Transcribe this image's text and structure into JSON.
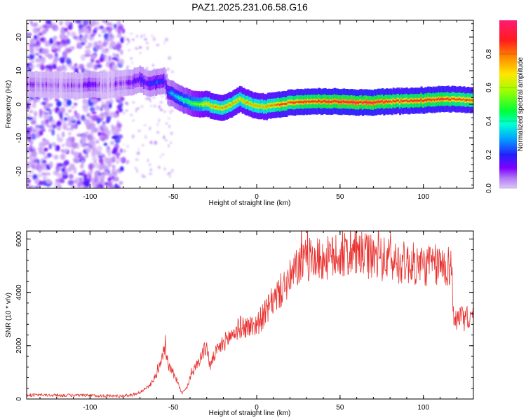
{
  "title": "PAZ1.2025.231.06.58.G16",
  "chart_data": [
    {
      "type": "heatmap",
      "xlabel": "Height of straight line (km)",
      "ylabel": "Frequency (Hz)",
      "xlim": [
        -138,
        130
      ],
      "ylim": [
        -25,
        25
      ],
      "xticks": [
        -100,
        -50,
        0,
        50,
        100
      ],
      "yticks": [
        -20,
        -10,
        0,
        10,
        20
      ],
      "colorbar": {
        "label": "Normalized spectral amplitude",
        "range": [
          0,
          1
        ],
        "ticks": [
          "0.0",
          "0.2",
          "0.4",
          "0.6",
          "0.8"
        ],
        "tick_values": [
          0.0,
          0.2,
          0.4,
          0.6,
          0.8
        ]
      },
      "ridge": {
        "x": [
          -138,
          -105,
          -100,
          -95,
          -90,
          -85,
          -80,
          -75,
          -70,
          -65,
          -60,
          -55,
          -53,
          -50,
          -45,
          -40,
          -35,
          -30,
          -25,
          -20,
          -15,
          -10,
          -5,
          0,
          5,
          10,
          15,
          20,
          30,
          40,
          50,
          60,
          70,
          80,
          90,
          100,
          110,
          120,
          130
        ],
        "frequency": [
          6,
          5.5,
          6,
          5.8,
          5.5,
          6,
          6.5,
          6.5,
          7.5,
          6,
          6.5,
          7,
          3.5,
          3,
          1.5,
          0.5,
          0,
          0,
          -0.8,
          -1,
          0,
          1.5,
          0.5,
          -0.5,
          -0.7,
          -0.3,
          0,
          0.5,
          0.8,
          0.8,
          0.8,
          0.5,
          0.5,
          0.8,
          1,
          1.2,
          1.5,
          1.5,
          1.2
        ],
        "amplitude": [
          0.05,
          0.08,
          0.15,
          0.08,
          0.05,
          0.08,
          0.12,
          0.15,
          0.2,
          0.2,
          0.25,
          0.2,
          0.3,
          0.35,
          0.45,
          0.5,
          0.6,
          0.7,
          0.75,
          0.75,
          0.75,
          0.7,
          0.75,
          0.75,
          0.75,
          0.8,
          0.85,
          0.85,
          0.9,
          0.9,
          0.95,
          0.95,
          0.95,
          0.9,
          0.9,
          0.9,
          0.9,
          0.85,
          0.85
        ]
      }
    },
    {
      "type": "line",
      "xlabel": "Height of straight line (km)",
      "ylabel": "SNR (10 * v/v)",
      "xlim": [
        -138,
        130
      ],
      "ylim": [
        0,
        6300
      ],
      "xticks": [
        -100,
        -50,
        0,
        50,
        100
      ],
      "yticks": [
        0,
        2000,
        4000,
        6000
      ],
      "color": "#e8312e",
      "series": [
        {
          "name": "SNR",
          "x": [
            -138,
            -120,
            -100,
            -90,
            -82,
            -75,
            -70,
            -65,
            -60,
            -57,
            -55,
            -53,
            -50,
            -47,
            -45,
            -42,
            -40,
            -35,
            -30,
            -28,
            -25,
            -20,
            -15,
            -10,
            -5,
            0,
            5,
            10,
            15,
            20,
            25,
            30,
            40,
            50,
            60,
            70,
            80,
            90,
            100,
            110,
            115,
            117,
            118,
            122,
            130
          ],
          "values": [
            150,
            140,
            130,
            120,
            110,
            150,
            250,
            450,
            900,
            1600,
            2000,
            1300,
            900,
            600,
            200,
            400,
            800,
            1400,
            2000,
            1200,
            1700,
            2100,
            2400,
            2700,
            2700,
            2800,
            3200,
            3700,
            4100,
            4500,
            5000,
            5200,
            5250,
            5350,
            5450,
            5300,
            5200,
            5100,
            5000,
            5000,
            5000,
            5000,
            3050,
            3000,
            3050
          ]
        }
      ]
    }
  ]
}
